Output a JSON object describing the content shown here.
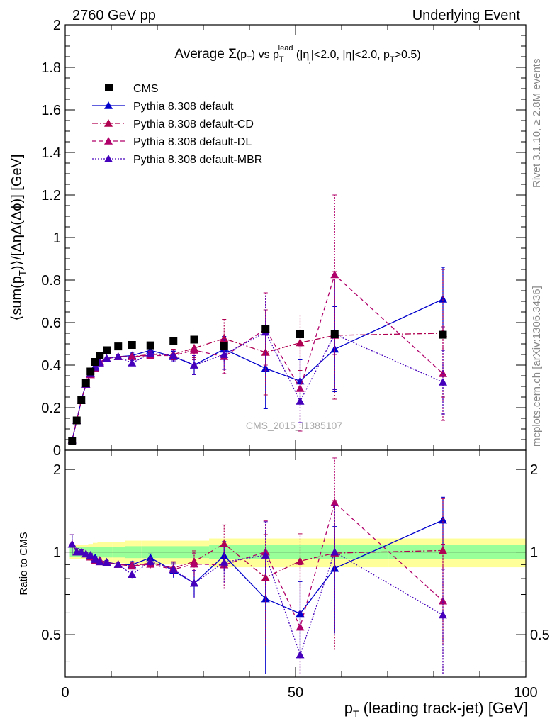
{
  "header": {
    "energy_label": "2760 GeV pp",
    "process_label": "Underlying Event",
    "rivet_label": "Rivet 3.1.10, ≥ 2.8M events",
    "mcplots_label": "mcplots.cern.ch [arXiv:1306.3436]",
    "analysis_label": "CMS_2015_I1385107"
  },
  "title": {
    "prefix": "Average ",
    "sigma": "Σ",
    "mid": "(p",
    "sub_t": "T",
    "close": ") vs p",
    "sup_lead": "lead",
    "cut1": " (|η",
    "sub_j": "j",
    "cut2": "|<2.0, |η|<2.0, p",
    "sub_t2": "T",
    "cut3": ">0.5)"
  },
  "axes": {
    "ylabel_main": "⟨sum(p_T)⟩/[ΔηΔ(Δϕ)] [GeV]",
    "ylabel_main_a": "⟨sum(p",
    "ylabel_main_b": ")⟩/[ΔηΔ(Δϕ)] [GeV]",
    "ylabel_main_sub": "T",
    "ylabel_ratio": "Ratio to CMS",
    "xlabel_a": "p",
    "xlabel_sub": "T",
    "xlabel_b": " (leading track-jet) [GeV]"
  },
  "colors": {
    "cms": "#000000",
    "default": "#0000cc",
    "cd": "#b00050",
    "dl": "#b0006a",
    "mbr": "#4400bb",
    "band_inner": "#99ff99",
    "band_outer": "#ffff99"
  },
  "chart_data": {
    "type": "scatter",
    "xlim": [
      0,
      100
    ],
    "ylim_main": [
      0,
      2
    ],
    "ylim_ratio": [
      0.35,
      2.35
    ],
    "ratio_log_scale": true,
    "x_ticks": [
      "0",
      "50",
      "100"
    ],
    "y_ticks_main": [
      "0",
      "0.2",
      "0.4",
      "0.6",
      "0.8",
      "1",
      "1.2",
      "1.4",
      "1.6",
      "1.8",
      "2"
    ],
    "y_ticks_ratio": [
      "0.5",
      "1",
      "2"
    ],
    "legend_position": "top-left",
    "legend": [
      {
        "name": "CMS",
        "marker": "square",
        "style": "none",
        "color": "#000000"
      },
      {
        "name": "Pythia 8.308 default",
        "marker": "triangle",
        "style": "solid",
        "color": "#0000cc"
      },
      {
        "name": "Pythia 8.308 default-CD",
        "marker": "triangle",
        "style": "dashdot",
        "color": "#b00050"
      },
      {
        "name": "Pythia 8.308 default-DL",
        "marker": "triangle",
        "style": "dashed",
        "color": "#b0006a"
      },
      {
        "name": "Pythia 8.308 default-MBR",
        "marker": "triangle",
        "style": "dotted",
        "color": "#4400bb"
      }
    ],
    "cms": {
      "x": [
        1.5,
        2.5,
        3.5,
        4.5,
        5.5,
        6.5,
        7.5,
        9,
        11.5,
        14.5,
        18.5,
        23.5,
        28,
        34.5,
        43.5,
        51,
        58.5,
        82
      ],
      "y": [
        0.045,
        0.14,
        0.235,
        0.315,
        0.37,
        0.415,
        0.445,
        0.47,
        0.488,
        0.495,
        0.493,
        0.515,
        0.52,
        0.49,
        0.57,
        0.545,
        0.545,
        0.543
      ],
      "band_inner": [
        0.04,
        0.04,
        0.04,
        0.04,
        0.04,
        0.04,
        0.045,
        0.045,
        0.045,
        0.05,
        0.05,
        0.05,
        0.05,
        0.06,
        0.06,
        0.06,
        0.06,
        0.06
      ],
      "band_outer": [
        0.06,
        0.06,
        0.06,
        0.06,
        0.07,
        0.08,
        0.09,
        0.09,
        0.09,
        0.1,
        0.1,
        0.1,
        0.1,
        0.12,
        0.12,
        0.12,
        0.12,
        0.12
      ]
    },
    "series": [
      {
        "name": "Pythia 8.308 default",
        "key": "default",
        "x": [
          1.5,
          2.5,
          3.5,
          4.5,
          5.5,
          6.5,
          7.5,
          9,
          11.5,
          14.5,
          18.5,
          23.5,
          28,
          34.5,
          43.5,
          51,
          58.5,
          82
        ],
        "y": [
          0.048,
          0.14,
          0.235,
          0.31,
          0.36,
          0.395,
          0.415,
          0.432,
          0.44,
          0.445,
          0.47,
          0.44,
          0.4,
          0.475,
          0.385,
          0.325,
          0.475,
          0.71
        ],
        "err": [
          0.004,
          0.004,
          0.004,
          0.004,
          0.005,
          0.005,
          0.005,
          0.006,
          0.008,
          0.012,
          0.015,
          0.025,
          0.045,
          0.06,
          0.19,
          0.1,
          0.2,
          0.15
        ]
      },
      {
        "name": "Pythia 8.308 default-CD",
        "key": "cd",
        "x": [
          1.5,
          2.5,
          3.5,
          4.5,
          5.5,
          6.5,
          7.5,
          9,
          11.5,
          14.5,
          18.5,
          23.5,
          28,
          34.5,
          43.5,
          51,
          58.5,
          82
        ],
        "y": [
          0.048,
          0.14,
          0.235,
          0.31,
          0.355,
          0.385,
          0.41,
          0.43,
          0.44,
          0.44,
          0.45,
          0.45,
          0.48,
          0.525,
          0.46,
          0.505,
          0.54,
          0.55
        ],
        "err": [
          0.004,
          0.004,
          0.004,
          0.004,
          0.005,
          0.005,
          0.005,
          0.006,
          0.008,
          0.012,
          0.015,
          0.025,
          0.045,
          0.09,
          0.2,
          0.13,
          0.3,
          0.3
        ]
      },
      {
        "name": "Pythia 8.308 default-DL",
        "key": "dl",
        "x": [
          1.5,
          2.5,
          3.5,
          4.5,
          5.5,
          6.5,
          7.5,
          9,
          11.5,
          14.5,
          18.5,
          23.5,
          28,
          34.5,
          43.5,
          51,
          58.5,
          82
        ],
        "y": [
          0.048,
          0.14,
          0.235,
          0.31,
          0.355,
          0.385,
          0.415,
          0.43,
          0.44,
          0.44,
          0.445,
          0.445,
          0.47,
          0.44,
          0.57,
          0.29,
          0.825,
          0.36
        ],
        "err": [
          0.004,
          0.004,
          0.004,
          0.004,
          0.005,
          0.005,
          0.005,
          0.006,
          0.008,
          0.012,
          0.015,
          0.025,
          0.045,
          0.08,
          0.17,
          0.2,
          0.375,
          0.22
        ]
      },
      {
        "name": "Pythia 8.308 default-MBR",
        "key": "mbr",
        "x": [
          1.5,
          2.5,
          3.5,
          4.5,
          5.5,
          6.5,
          7.5,
          9,
          11.5,
          14.5,
          18.5,
          23.5,
          28,
          34.5,
          43.5,
          51,
          58.5,
          82
        ],
        "y": [
          0.048,
          0.14,
          0.235,
          0.31,
          0.36,
          0.39,
          0.41,
          0.43,
          0.44,
          0.41,
          0.455,
          0.445,
          0.4,
          0.45,
          0.555,
          0.23,
          0.545,
          0.32
        ],
        "err": [
          0.004,
          0.004,
          0.004,
          0.004,
          0.005,
          0.005,
          0.005,
          0.006,
          0.008,
          0.012,
          0.015,
          0.025,
          0.045,
          0.07,
          0.18,
          0.1,
          0.26,
          0.15
        ]
      }
    ]
  }
}
